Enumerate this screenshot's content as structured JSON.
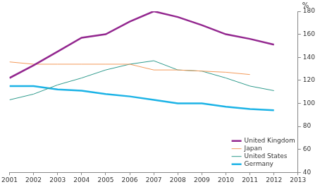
{
  "chart_data": {
    "type": "line",
    "y_label": "%",
    "x": [
      2001,
      2002,
      2003,
      2004,
      2005,
      2006,
      2007,
      2008,
      2009,
      2010,
      2011,
      2012
    ],
    "series": [
      {
        "name": "United Kingdom",
        "color": "#93278f",
        "values": [
          122,
          133,
          145,
          157,
          160,
          171,
          180,
          175,
          168,
          160,
          156,
          151
        ]
      },
      {
        "name": "Japan",
        "color": "#f39a5a",
        "values": [
          136,
          134,
          134,
          134,
          134,
          134,
          129,
          129,
          128,
          127,
          125,
          null
        ]
      },
      {
        "name": "United States",
        "color": "#2e9a8c",
        "values": [
          103,
          108,
          116,
          122,
          129,
          134,
          137,
          129,
          128,
          122,
          115,
          111
        ]
      },
      {
        "name": "Germany",
        "color": "#1cb3e6",
        "values": [
          115,
          115,
          112,
          111,
          108,
          106,
          103,
          100,
          100,
          97,
          95,
          94
        ]
      }
    ],
    "xlim": [
      2001,
      2013
    ],
    "xticks": [
      2001,
      2002,
      2003,
      2004,
      2005,
      2006,
      2007,
      2008,
      2009,
      2010,
      2011,
      2012,
      2013
    ],
    "ylim": [
      40,
      180
    ],
    "yticks": [
      40,
      60,
      80,
      100,
      120,
      140,
      160,
      180
    ],
    "grid": false,
    "legend": "lower right"
  }
}
